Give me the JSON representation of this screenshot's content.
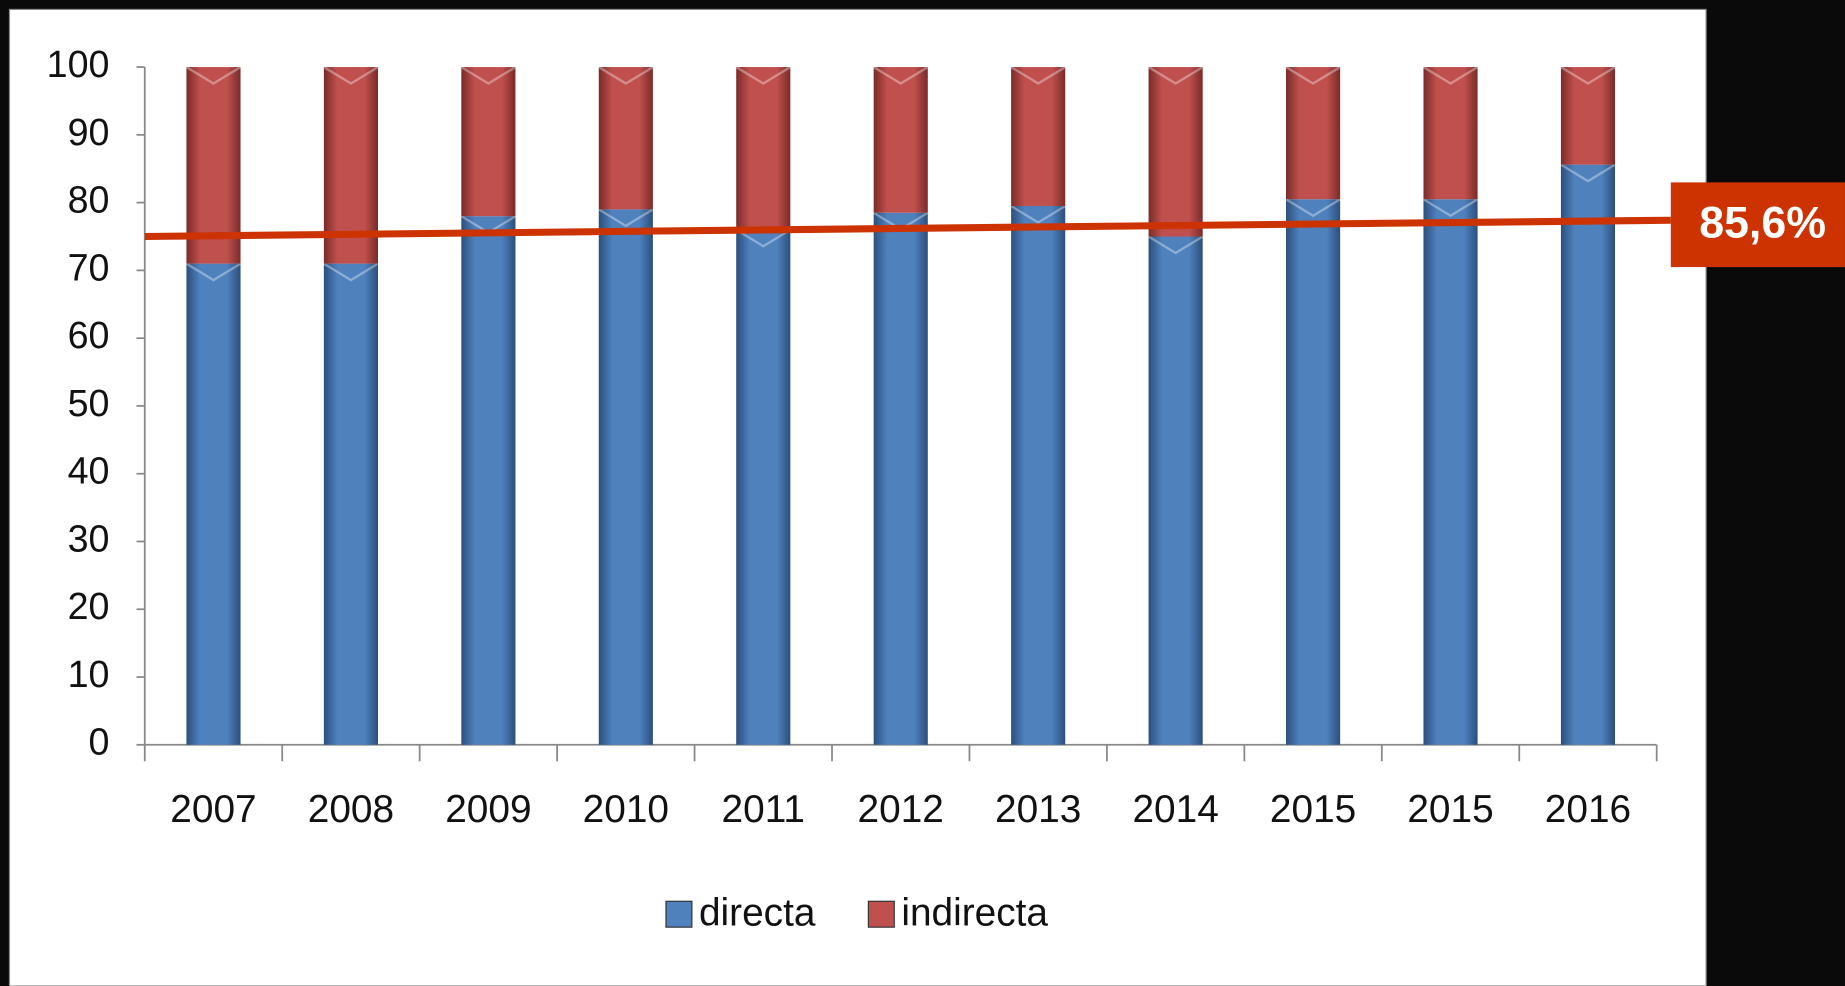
{
  "chart_data": {
    "type": "bar",
    "stacked": true,
    "categories": [
      "2007",
      "2008",
      "2009",
      "2010",
      "2011",
      "2012",
      "2013",
      "2014",
      "2015",
      "2015",
      "2016"
    ],
    "series": [
      {
        "name": "directa",
        "color": "#4f81bd",
        "values": [
          71,
          71,
          78,
          79,
          76,
          78.5,
          79.5,
          75,
          80.5,
          80.5,
          85.6
        ]
      },
      {
        "name": "indirecta",
        "color": "#c0504d",
        "values": [
          29,
          29,
          22,
          21,
          24,
          21.5,
          20.5,
          25,
          19.5,
          19.5,
          14.4
        ]
      }
    ],
    "ylim": [
      0,
      100
    ],
    "yticks": [
      0,
      10,
      20,
      30,
      40,
      50,
      60,
      70,
      80,
      90,
      100
    ],
    "trend_line": {
      "color": "#cc3300",
      "values": [
        75,
        77.4
      ]
    },
    "annotation": "85,6%"
  }
}
